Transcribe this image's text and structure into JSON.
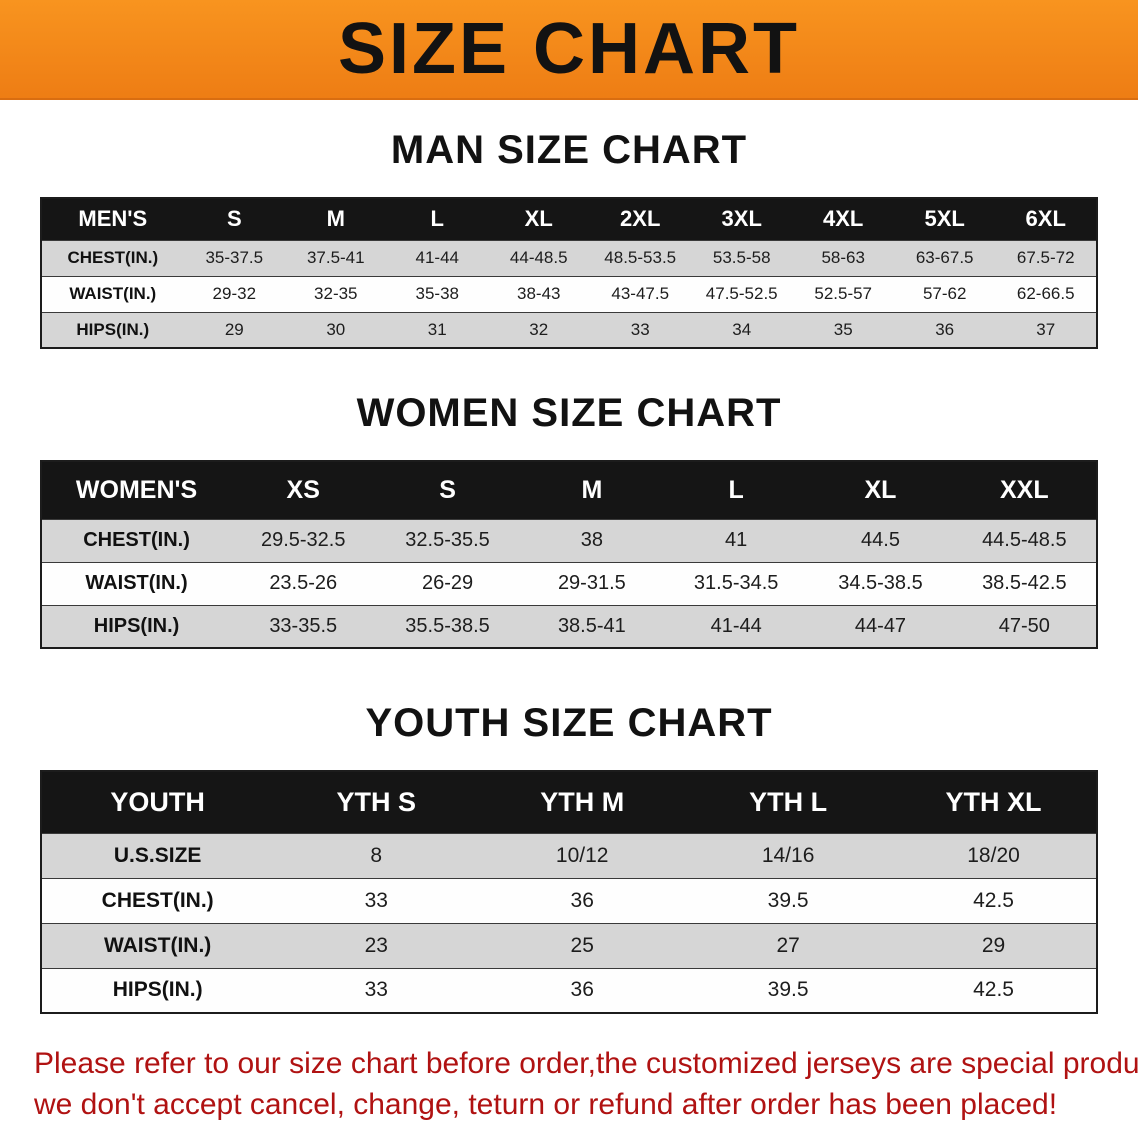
{
  "banner": {
    "title": "SIZE CHART"
  },
  "colors": {
    "banner_orange": "#f68b1e",
    "header_bar_black": "#151515",
    "row_stripe_gray": "#d6d6d6",
    "disclaimer_red": "#b01212"
  },
  "men": {
    "heading": "MAN SIZE CHART",
    "table": {
      "header": [
        "MEN'S",
        "S",
        "M",
        "L",
        "XL",
        "2XL",
        "3XL",
        "4XL",
        "5XL",
        "6XL"
      ],
      "rows": [
        [
          "CHEST(IN.)",
          "35-37.5",
          "37.5-41",
          "41-44",
          "44-48.5",
          "48.5-53.5",
          "53.5-58",
          "58-63",
          "63-67.5",
          "67.5-72"
        ],
        [
          "WAIST(IN.)",
          "29-32",
          "32-35",
          "35-38",
          "38-43",
          "43-47.5",
          "47.5-52.5",
          "52.5-57",
          "57-62",
          "62-66.5"
        ],
        [
          "HIPS(IN.)",
          "29",
          "30",
          "31",
          "32",
          "33",
          "34",
          "35",
          "36",
          "37"
        ]
      ]
    }
  },
  "women": {
    "heading": "WOMEN SIZE CHART",
    "table": {
      "header": [
        "WOMEN'S",
        "XS",
        "S",
        "M",
        "L",
        "XL",
        "XXL"
      ],
      "rows": [
        [
          "CHEST(IN.)",
          "29.5-32.5",
          "32.5-35.5",
          "38",
          "41",
          "44.5",
          "44.5-48.5"
        ],
        [
          "WAIST(IN.)",
          "23.5-26",
          "26-29",
          "29-31.5",
          "31.5-34.5",
          "34.5-38.5",
          "38.5-42.5"
        ],
        [
          "HIPS(IN.)",
          "33-35.5",
          "35.5-38.5",
          "38.5-41",
          "41-44",
          "44-47",
          "47-50"
        ]
      ]
    }
  },
  "youth": {
    "heading": "YOUTH SIZE CHART",
    "table": {
      "header": [
        "YOUTH",
        "YTH S",
        "YTH M",
        "YTH L",
        "YTH XL"
      ],
      "rows": [
        [
          "U.S.SIZE",
          "8",
          "10/12",
          "14/16",
          "18/20"
        ],
        [
          "CHEST(IN.)",
          "33",
          "36",
          "39.5",
          "42.5"
        ],
        [
          "WAIST(IN.)",
          "23",
          "25",
          "27",
          "29"
        ],
        [
          "HIPS(IN.)",
          "33",
          "36",
          "39.5",
          "42.5"
        ]
      ]
    }
  },
  "disclaimer": {
    "line1": "Please refer to our size chart before order,the customized jerseys are special products,",
    "line2": "we don't accept cancel, change, teturn or refund after order has been placed!"
  }
}
